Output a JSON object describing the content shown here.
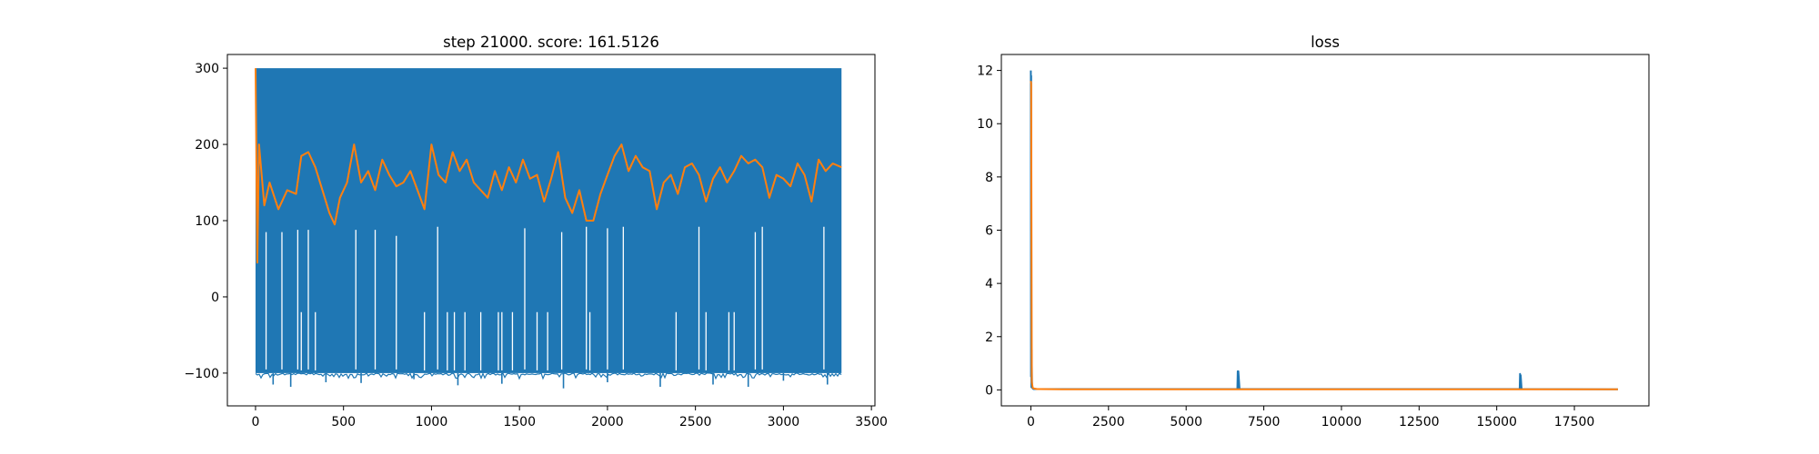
{
  "colors": {
    "series_raw": "#1f77b4",
    "series_smooth": "#ff7f0e",
    "axes": "#000000",
    "background": "#ffffff"
  },
  "chart_data": [
    {
      "type": "line",
      "title": "step 21000. score: 161.5126",
      "xlabel": "",
      "ylabel": "",
      "xlim": [
        -160,
        3520
      ],
      "ylim": [
        -143,
        318
      ],
      "xticks": [
        0,
        500,
        1000,
        1500,
        2000,
        2500,
        3000,
        3500
      ],
      "xtick_labels": [
        "0",
        "500",
        "1000",
        "1500",
        "2000",
        "2500",
        "3000",
        "3500"
      ],
      "yticks": [
        -100,
        0,
        100,
        200,
        300
      ],
      "ytick_labels": [
        "−100",
        "0",
        "100",
        "200",
        "300"
      ],
      "grid": false,
      "legend": "none",
      "series": [
        {
          "color": "#1f77b4",
          "style": "dense-band",
          "x_range": [
            0,
            3330
          ],
          "upper": 300,
          "lower": -100,
          "deep_dips": [
            [
              100,
              -115
            ],
            [
              200,
              -118
            ],
            [
              400,
              -112
            ],
            [
              600,
              -113
            ],
            [
              900,
              -108
            ],
            [
              1150,
              -116
            ],
            [
              1400,
              -114
            ],
            [
              1750,
              -120
            ],
            [
              2000,
              -112
            ],
            [
              2300,
              -118
            ],
            [
              2600,
              -115
            ],
            [
              2800,
              -118
            ],
            [
              3000,
              -110
            ],
            [
              3250,
              -115
            ]
          ],
          "gaps": [
            [
              60,
              85
            ],
            [
              150,
              85
            ],
            [
              240,
              88
            ],
            [
              300,
              88
            ],
            [
              570,
              88
            ],
            [
              680,
              88
            ],
            [
              800,
              80
            ],
            [
              1035,
              92
            ],
            [
              1530,
              90
            ],
            [
              1740,
              85
            ],
            [
              1880,
              92
            ],
            [
              2000,
              90
            ],
            [
              2090,
              92
            ],
            [
              2520,
              92
            ],
            [
              2840,
              85
            ],
            [
              2880,
              92
            ],
            [
              3230,
              92
            ]
          ],
          "lower_gaps": [
            [
              260,
              -20
            ],
            [
              340,
              -20
            ],
            [
              960,
              -20
            ],
            [
              1090,
              -20
            ],
            [
              1130,
              -20
            ],
            [
              1190,
              -20
            ],
            [
              1280,
              -20
            ],
            [
              1380,
              -20
            ],
            [
              1400,
              -20
            ],
            [
              1460,
              -20
            ],
            [
              1600,
              -20
            ],
            [
              1660,
              -20
            ],
            [
              1900,
              -20
            ],
            [
              2390,
              -20
            ],
            [
              2560,
              -20
            ],
            [
              2690,
              -20
            ],
            [
              2720,
              -20
            ]
          ]
        },
        {
          "color": "#ff7f0e",
          "style": "line",
          "x": [
            0,
            10,
            20,
            50,
            80,
            130,
            180,
            230,
            260,
            300,
            340,
            380,
            420,
            450,
            480,
            520,
            560,
            600,
            640,
            680,
            720,
            760,
            800,
            840,
            880,
            920,
            960,
            1000,
            1040,
            1080,
            1120,
            1160,
            1200,
            1240,
            1280,
            1320,
            1360,
            1400,
            1440,
            1480,
            1520,
            1560,
            1600,
            1640,
            1680,
            1720,
            1760,
            1800,
            1840,
            1880,
            1920,
            1960,
            2000,
            2040,
            2080,
            2120,
            2160,
            2200,
            2240,
            2280,
            2320,
            2360,
            2400,
            2440,
            2480,
            2520,
            2560,
            2600,
            2640,
            2680,
            2720,
            2760,
            2800,
            2840,
            2880,
            2920,
            2960,
            3000,
            3040,
            3080,
            3120,
            3160,
            3200,
            3240,
            3280,
            3330
          ],
          "y": [
            300,
            45,
            200,
            120,
            150,
            115,
            140,
            135,
            185,
            190,
            170,
            140,
            110,
            95,
            130,
            150,
            200,
            150,
            165,
            140,
            180,
            160,
            145,
            150,
            165,
            140,
            115,
            200,
            160,
            150,
            190,
            165,
            180,
            150,
            140,
            130,
            165,
            140,
            170,
            150,
            180,
            155,
            160,
            125,
            155,
            190,
            130,
            110,
            140,
            100,
            100,
            135,
            160,
            185,
            200,
            165,
            185,
            170,
            165,
            115,
            150,
            160,
            135,
            170,
            175,
            160,
            125,
            155,
            170,
            150,
            165,
            185,
            175,
            180,
            170,
            130,
            160,
            155,
            145,
            175,
            160,
            125,
            180,
            165,
            175,
            170
          ]
        }
      ]
    },
    {
      "type": "line",
      "title": "loss",
      "xlabel": "",
      "ylabel": "",
      "xlim": [
        -950,
        19900
      ],
      "ylim": [
        -0.6,
        12.6
      ],
      "xticks": [
        0,
        2500,
        5000,
        7500,
        10000,
        12500,
        15000,
        17500
      ],
      "xtick_labels": [
        "0",
        "2500",
        "5000",
        "7500",
        "10000",
        "12500",
        "15000",
        "17500"
      ],
      "yticks": [
        0,
        2,
        4,
        6,
        8,
        10,
        12
      ],
      "ytick_labels": [
        "0",
        "2",
        "4",
        "6",
        "8",
        "10",
        "12"
      ],
      "grid": false,
      "legend": "none",
      "series": [
        {
          "color": "#1f77b4",
          "x": [
            0,
            5,
            10,
            15,
            25,
            40,
            60,
            80,
            6600,
            6650,
            6660,
            6670,
            6680,
            6720,
            15700,
            15740,
            15750,
            15760,
            15770,
            15800,
            18900
          ],
          "y": [
            12.0,
            0.5,
            11.8,
            0.1,
            1.5,
            0.1,
            0.05,
            0.03,
            0.03,
            0.03,
            0.7,
            0.05,
            0.7,
            0.03,
            0.03,
            0.03,
            0.6,
            0.05,
            0.55,
            0.03,
            0.02
          ]
        },
        {
          "color": "#ff7f0e",
          "x": [
            0,
            10,
            30,
            60,
            100,
            200,
            1000,
            5000,
            10000,
            15000,
            18900
          ],
          "y": [
            11.6,
            11.5,
            0.3,
            0.08,
            0.05,
            0.03,
            0.02,
            0.02,
            0.02,
            0.02,
            0.02
          ]
        }
      ]
    }
  ]
}
